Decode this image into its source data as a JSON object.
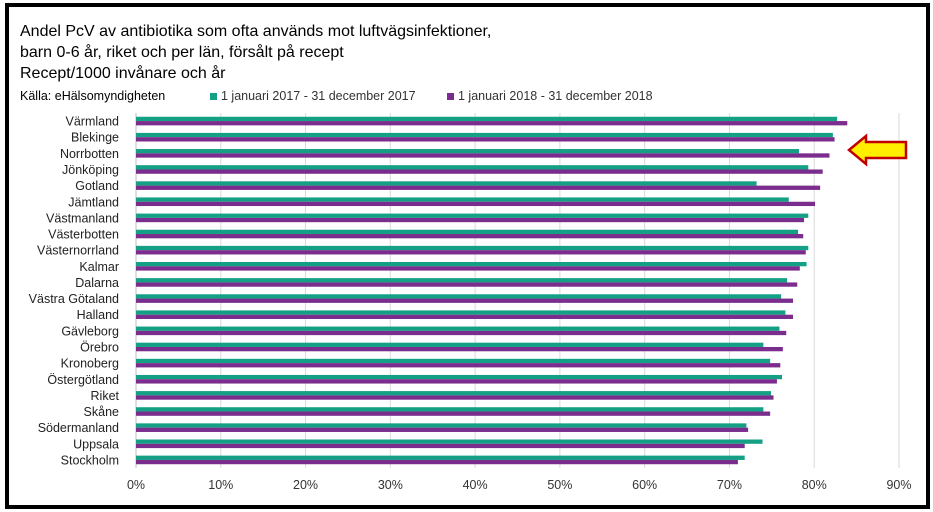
{
  "chart_data": {
    "type": "bar",
    "orientation": "horizontal",
    "title_lines": [
      "Andel PcV av antibiotika som ofta används mot luftvägsinfektioner,",
      "barn 0-6 år, riket och per län, försålt på recept",
      "Recept/1000 invånare och år"
    ],
    "source": "Källa: eHälsomyndigheten",
    "categories": [
      "Värmland",
      "Blekinge",
      "Norrbotten",
      "Jönköping",
      "Gotland",
      "Jämtland",
      "Västmanland",
      "Västerbotten",
      "Västernorrland",
      "Kalmar",
      "Dalarna",
      "Västra Götaland",
      "Halland",
      "Gävleborg",
      "Örebro",
      "Kronoberg",
      "Östergötland",
      "Riket",
      "Skåne",
      "Södermanland",
      "Uppsala",
      "Stockholm"
    ],
    "series": [
      {
        "name": "1 januari 2017 - 31 december 2017",
        "color": "#13a085",
        "values": [
          82.7,
          82.2,
          78.2,
          79.3,
          73.2,
          77.0,
          79.3,
          78.1,
          79.3,
          79.1,
          76.8,
          76.1,
          76.6,
          75.9,
          74.0,
          74.8,
          76.2,
          74.9,
          74.0,
          72.0,
          73.9,
          71.8
        ]
      },
      {
        "name": "1 januari 2018 - 31 december 2018",
        "color": "#7b2d8e",
        "values": [
          83.9,
          82.4,
          81.8,
          81.0,
          80.7,
          80.1,
          78.8,
          78.7,
          79.0,
          78.3,
          78.0,
          77.5,
          77.5,
          76.7,
          76.3,
          76.0,
          75.6,
          75.2,
          74.8,
          72.2,
          71.8,
          71.0
        ]
      }
    ],
    "xlim": [
      0,
      90
    ],
    "xticks": [
      "0%",
      "10%",
      "20%",
      "30%",
      "40%",
      "50%",
      "60%",
      "70%",
      "80%",
      "90%"
    ],
    "grid": true,
    "legend_position": "top",
    "annotation": "arrow-pointing-at-norrbotten"
  }
}
